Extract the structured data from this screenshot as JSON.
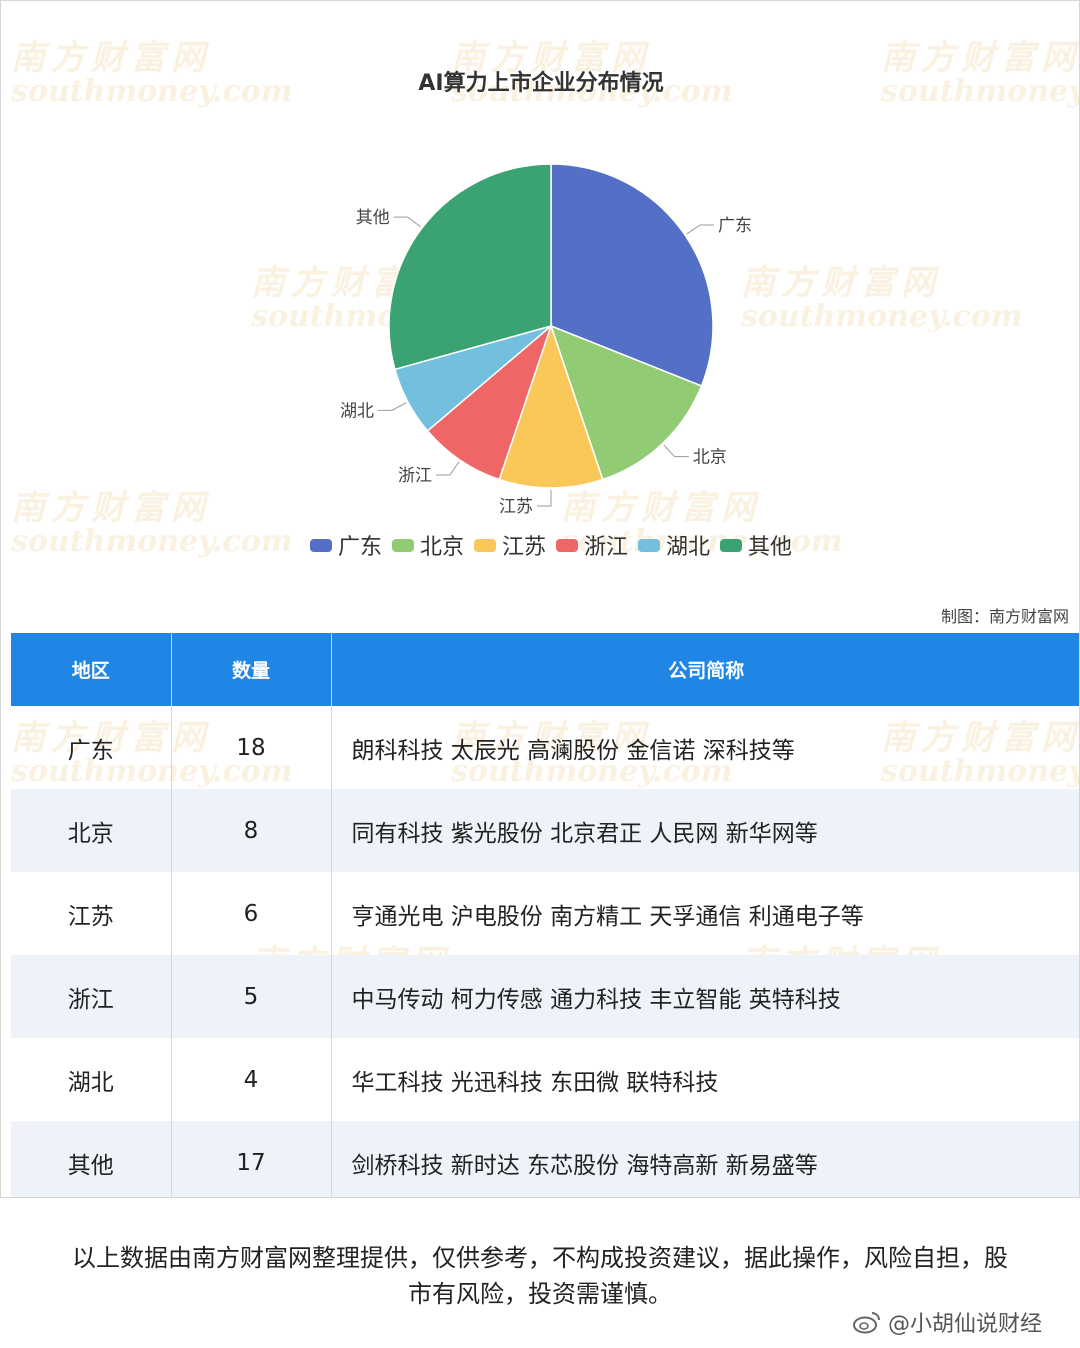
{
  "chart_data": {
    "type": "pie",
    "title": "AI算力上市企业分布情况",
    "categories": [
      "广东",
      "北京",
      "江苏",
      "浙江",
      "湖北",
      "其他"
    ],
    "values": [
      18,
      8,
      6,
      5,
      4,
      17
    ],
    "colors": [
      "#5470c6",
      "#91cc75",
      "#fac858",
      "#ee6666",
      "#73c0de",
      "#3ba272"
    ],
    "legend_position": "bottom"
  },
  "credit": "制图：南方财富网",
  "table": {
    "headers": [
      "地区",
      "数量",
      "公司简称"
    ],
    "header_color": "#1f86e6",
    "rows": [
      {
        "region": "广东",
        "count": "18",
        "companies": "朗科科技 太辰光 高澜股份 金信诺 深科技等"
      },
      {
        "region": "北京",
        "count": "8",
        "companies": "同有科技 紫光股份 北京君正 人民网 新华网等"
      },
      {
        "region": "江苏",
        "count": "6",
        "companies": "亨通光电 沪电股份 南方精工 天孚通信 利通电子等"
      },
      {
        "region": "浙江",
        "count": "5",
        "companies": "中马传动 柯力传感 通力科技 丰立智能 英特科技"
      },
      {
        "region": "湖北",
        "count": "4",
        "companies": "华工科技 光迅科技 东田微 联特科技"
      },
      {
        "region": "其他",
        "count": "17",
        "companies": "剑桥科技 新时达 东芯股份 海特高新 新易盛等"
      }
    ]
  },
  "disclaimer": "以上数据由南方财富网整理提供，仅供参考，不构成投资建议，据此操作，风险自担，股市有风险，投资需谨慎。",
  "weibo": {
    "icon": "weibo-icon",
    "handle": "@小胡仙说财经"
  },
  "watermark": {
    "cn": "南方财富网",
    "en": "southmoney.com"
  }
}
